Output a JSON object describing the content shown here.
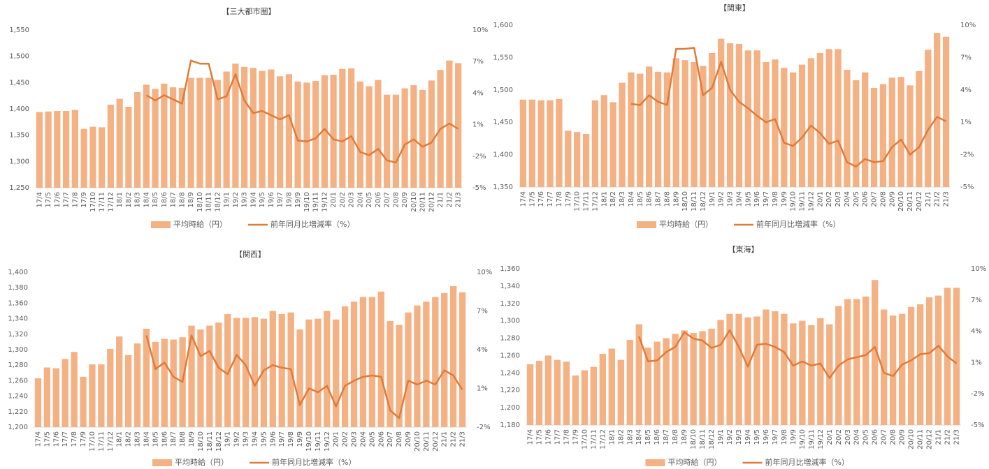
{
  "chart_data": [
    {
      "type": "bar",
      "title": "【三大都市圏】",
      "categories": [
        "17/4",
        "17/5",
        "17/6",
        "17/7",
        "17/8",
        "17/9",
        "17/10",
        "17/11",
        "17/12",
        "18/1",
        "18/2",
        "18/3",
        "18/4",
        "18/5",
        "18/6",
        "18/7",
        "18/8",
        "18/9",
        "18/10",
        "18/11",
        "18/12",
        "19/1",
        "19/2",
        "19/3",
        "19/4",
        "19/5",
        "19/6",
        "19/7",
        "19/8",
        "19/9",
        "19/10",
        "19/11",
        "19/12",
        "20/1",
        "20/2",
        "20/3",
        "20/4",
        "20/5",
        "20/6",
        "20/7",
        "20/8",
        "20/9",
        "20/10",
        "20/11",
        "20/12",
        "21/1",
        "21/2",
        "21/3"
      ],
      "series": [
        {
          "name": "平均時給（円）",
          "color": "#f4b183",
          "values": [
            1394,
            1395,
            1396,
            1396,
            1398,
            1362,
            1366,
            1365,
            1408,
            1419,
            1404,
            1432,
            1446,
            1438,
            1448,
            1441,
            1440,
            1459,
            1459,
            1459,
            1455,
            1471,
            1486,
            1480,
            1478,
            1472,
            1475,
            1462,
            1466,
            1452,
            1450,
            1453,
            1464,
            1465,
            1476,
            1477,
            1452,
            1443,
            1455,
            1427,
            1427,
            1439,
            1445,
            1436,
            1454,
            1474,
            1492,
            1487
          ]
        },
        {
          "name": "前年同月比増減率（%）",
          "color": "#e07b39",
          "axis": "y2",
          "values": [
            null,
            null,
            null,
            null,
            null,
            null,
            null,
            null,
            null,
            null,
            null,
            null,
            3.8,
            3.3,
            3.8,
            3.4,
            3.0,
            7.1,
            6.8,
            6.8,
            3.4,
            3.7,
            5.8,
            3.3,
            2.1,
            2.3,
            1.9,
            1.5,
            1.9,
            -0.5,
            -0.6,
            -0.3,
            0.6,
            -0.4,
            -0.6,
            -0.1,
            -1.6,
            -1.9,
            -1.3,
            -2.4,
            -2.6,
            -0.9,
            -0.4,
            -1.1,
            -0.7,
            0.6,
            1.1,
            0.6
          ]
        }
      ],
      "ylim": [
        1250,
        1550
      ],
      "yticks": [
        {
          "value": 1250,
          "label": "1,250"
        },
        {
          "value": 1300,
          "label": "1,300"
        },
        {
          "value": 1350,
          "label": "1,350"
        },
        {
          "value": 1400,
          "label": "1,400"
        },
        {
          "value": 1450,
          "label": "1,450"
        },
        {
          "value": 1500,
          "label": "1,500"
        },
        {
          "value": 1550,
          "label": "1,550"
        }
      ],
      "y2lim": [
        -5,
        10
      ],
      "y2ticks": [
        {
          "value": -5,
          "label": "-5%"
        },
        {
          "value": -2,
          "label": "-2%"
        },
        {
          "value": 1,
          "label": "1%"
        },
        {
          "value": 4,
          "label": "4%"
        },
        {
          "value": 7,
          "label": "7%"
        },
        {
          "value": 10,
          "label": "10%"
        }
      ]
    },
    {
      "type": "bar",
      "title": "【関東】",
      "categories": [
        "17/4",
        "17/5",
        "17/6",
        "17/7",
        "17/8",
        "17/9",
        "17/10",
        "17/11",
        "17/12",
        "18/1",
        "18/2",
        "18/3",
        "18/4",
        "18/5",
        "18/6",
        "18/7",
        "18/8",
        "18/9",
        "18/10",
        "18/11",
        "18/12",
        "19/1",
        "19/2",
        "19/3",
        "19/4",
        "19/5",
        "19/6",
        "19/7",
        "19/8",
        "19/9",
        "19/10",
        "19/11",
        "19/12",
        "20/1",
        "20/2",
        "20/3",
        "20/4",
        "20/5",
        "20/6",
        "20/7",
        "20/8",
        "20/9",
        "20/10",
        "20/11",
        "20/12",
        "21/1",
        "21/2",
        "21/3"
      ],
      "series": [
        {
          "name": "平均時給（円）",
          "color": "#f4b183",
          "values": [
            1485,
            1485,
            1484,
            1484,
            1486,
            1437,
            1435,
            1432,
            1484,
            1492,
            1481,
            1511,
            1527,
            1525,
            1536,
            1528,
            1527,
            1549,
            1546,
            1543,
            1537,
            1557,
            1579,
            1572,
            1571,
            1561,
            1561,
            1543,
            1547,
            1534,
            1527,
            1539,
            1549,
            1557,
            1563,
            1563,
            1531,
            1515,
            1527,
            1503,
            1509,
            1519,
            1520,
            1507,
            1529,
            1562,
            1588,
            1582
          ]
        },
        {
          "name": "前年同月比増減率（%）",
          "color": "#e07b39",
          "axis": "y2",
          "values": [
            null,
            null,
            null,
            null,
            null,
            null,
            null,
            null,
            null,
            null,
            null,
            null,
            2.7,
            2.6,
            3.5,
            2.9,
            2.6,
            7.8,
            7.8,
            7.9,
            3.5,
            4.2,
            6.6,
            4.0,
            2.9,
            2.3,
            1.6,
            1.0,
            1.3,
            -0.9,
            -1.2,
            -0.4,
            0.7,
            0.0,
            -1.0,
            -0.7,
            -2.7,
            -3.1,
            -2.4,
            -2.7,
            -2.6,
            -1.3,
            -0.6,
            -2.0,
            -1.3,
            0.3,
            1.5,
            1.1
          ]
        }
      ],
      "ylim": [
        1350,
        1600
      ],
      "yticks": [
        {
          "value": 1350,
          "label": "1,350"
        },
        {
          "value": 1400,
          "label": "1,400"
        },
        {
          "value": 1450,
          "label": "1,450"
        },
        {
          "value": 1500,
          "label": "1,500"
        },
        {
          "value": 1550,
          "label": "1,550"
        },
        {
          "value": 1600,
          "label": "1,600"
        }
      ],
      "y2lim": [
        -5,
        10
      ],
      "y2ticks": [
        {
          "value": -5,
          "label": "-5%"
        },
        {
          "value": -2,
          "label": "-2%"
        },
        {
          "value": 1,
          "label": "1%"
        },
        {
          "value": 4,
          "label": "4%"
        },
        {
          "value": 7,
          "label": "7%"
        },
        {
          "value": 10,
          "label": "10%"
        }
      ]
    },
    {
      "type": "bar",
      "title": "【関西】",
      "categories": [
        "17/4",
        "17/5",
        "17/6",
        "17/7",
        "17/8",
        "17/9",
        "17/10",
        "17/11",
        "17/12",
        "18/1",
        "18/2",
        "18/3",
        "18/4",
        "18/5",
        "18/6",
        "18/7",
        "18/8",
        "18/9",
        "18/10",
        "18/11",
        "18/12",
        "19/1",
        "19/2",
        "19/3",
        "19/4",
        "19/5",
        "19/6",
        "19/7",
        "19/8",
        "19/9",
        "19/10",
        "19/11",
        "19/12",
        "20/1",
        "20/2",
        "20/3",
        "20/4",
        "20/5",
        "20/6",
        "20/7",
        "20/8",
        "20/9",
        "20/10",
        "20/11",
        "20/12",
        "21/1",
        "21/2",
        "21/3"
      ],
      "series": [
        {
          "name": "平均時給（円）",
          "color": "#f4b183",
          "values": [
            1263,
            1277,
            1276,
            1288,
            1297,
            1265,
            1281,
            1281,
            1301,
            1317,
            1293,
            1308,
            1327,
            1310,
            1314,
            1313,
            1316,
            1331,
            1326,
            1331,
            1335,
            1346,
            1341,
            1341,
            1342,
            1340,
            1350,
            1346,
            1348,
            1326,
            1339,
            1340,
            1350,
            1339,
            1356,
            1362,
            1368,
            1368,
            1375,
            1337,
            1332,
            1348,
            1357,
            1362,
            1368,
            1373,
            1382,
            1374
          ]
        },
        {
          "name": "前年同月比増減率（%）",
          "color": "#e07b39",
          "axis": "y2",
          "values": [
            null,
            null,
            null,
            null,
            null,
            null,
            null,
            null,
            null,
            null,
            null,
            null,
            5.1,
            2.5,
            3.0,
            1.9,
            1.5,
            5.1,
            3.5,
            3.9,
            2.6,
            2.1,
            3.6,
            2.8,
            1.2,
            2.4,
            2.8,
            2.6,
            2.5,
            -0.3,
            1.0,
            0.7,
            1.2,
            -0.4,
            1.2,
            1.6,
            1.9,
            2.0,
            1.9,
            -0.7,
            -1.3,
            1.6,
            1.3,
            1.6,
            1.3,
            2.4,
            2.0,
            0.9
          ]
        }
      ],
      "ylim": [
        1200,
        1400
      ],
      "yticks": [
        {
          "value": 1200,
          "label": "1,200"
        },
        {
          "value": 1220,
          "label": "1,220"
        },
        {
          "value": 1240,
          "label": "1,240"
        },
        {
          "value": 1260,
          "label": "1,260"
        },
        {
          "value": 1280,
          "label": "1,280"
        },
        {
          "value": 1300,
          "label": "1,300"
        },
        {
          "value": 1320,
          "label": "1,320"
        },
        {
          "value": 1340,
          "label": "1,340"
        },
        {
          "value": 1360,
          "label": "1,360"
        },
        {
          "value": 1380,
          "label": "1,380"
        },
        {
          "value": 1400,
          "label": "1,400"
        }
      ],
      "y2lim": [
        -2,
        10
      ],
      "y2ticks": [
        {
          "value": -2,
          "label": "-2%"
        },
        {
          "value": 1,
          "label": "1%"
        },
        {
          "value": 4,
          "label": "4%"
        },
        {
          "value": 7,
          "label": "7%"
        },
        {
          "value": 10,
          "label": "10%"
        }
      ]
    },
    {
      "type": "bar",
      "title": "【東海】",
      "categories": [
        "17/4",
        "17/5",
        "17/6",
        "17/7",
        "17/8",
        "17/9",
        "17/10",
        "17/11",
        "17/12",
        "18/1",
        "18/2",
        "18/3",
        "18/4",
        "18/5",
        "18/6",
        "18/7",
        "18/8",
        "18/9",
        "18/10",
        "18/11",
        "18/12",
        "19/1",
        "19/2",
        "19/3",
        "19/4",
        "19/5",
        "19/6",
        "19/7",
        "19/8",
        "19/9",
        "19/10",
        "19/11",
        "19/12",
        "20/1",
        "20/2",
        "20/3",
        "20/4",
        "20/5",
        "20/6",
        "20/7",
        "20/8",
        "20/9",
        "20/10",
        "20/11",
        "20/12",
        "21/1",
        "21/2",
        "21/3"
      ],
      "series": [
        {
          "name": "平均時給（円）",
          "color": "#f4b183",
          "values": [
            1250,
            1254,
            1260,
            1255,
            1253,
            1237,
            1243,
            1247,
            1262,
            1268,
            1255,
            1278,
            1296,
            1269,
            1276,
            1280,
            1285,
            1289,
            1286,
            1288,
            1291,
            1301,
            1308,
            1308,
            1304,
            1305,
            1313,
            1311,
            1308,
            1297,
            1300,
            1295,
            1303,
            1296,
            1317,
            1325,
            1325,
            1328,
            1347,
            1313,
            1306,
            1308,
            1316,
            1319,
            1327,
            1329,
            1338,
            1338
          ]
        },
        {
          "name": "前年同月比増減率（%）",
          "color": "#e07b39",
          "axis": "y2",
          "values": [
            null,
            null,
            null,
            null,
            null,
            null,
            null,
            null,
            null,
            null,
            null,
            null,
            3.5,
            1.1,
            1.2,
            2.0,
            2.5,
            3.9,
            3.3,
            3.1,
            2.4,
            2.7,
            4.1,
            2.5,
            0.6,
            2.7,
            2.8,
            2.5,
            2.0,
            0.7,
            1.1,
            0.7,
            0.9,
            -0.5,
            0.7,
            1.3,
            1.5,
            1.7,
            2.5,
            0.0,
            -0.3,
            0.8,
            1.2,
            1.8,
            1.9,
            2.6,
            1.6,
            0.9
          ]
        }
      ],
      "ylim": [
        1180,
        1360
      ],
      "yticks": [
        {
          "value": 1180,
          "label": "1,180"
        },
        {
          "value": 1200,
          "label": "1,200"
        },
        {
          "value": 1220,
          "label": "1,220"
        },
        {
          "value": 1240,
          "label": "1,240"
        },
        {
          "value": 1260,
          "label": "1,260"
        },
        {
          "value": 1280,
          "label": "1,280"
        },
        {
          "value": 1300,
          "label": "1,300"
        },
        {
          "value": 1320,
          "label": "1,320"
        },
        {
          "value": 1340,
          "label": "1,340"
        },
        {
          "value": 1360,
          "label": "1,360"
        }
      ],
      "y2lim": [
        -5,
        10
      ],
      "y2ticks": [
        {
          "value": -5,
          "label": "-5%"
        },
        {
          "value": -2,
          "label": "-2%"
        },
        {
          "value": 1,
          "label": "1%"
        },
        {
          "value": 4,
          "label": "4%"
        },
        {
          "value": 7,
          "label": "7%"
        },
        {
          "value": 10,
          "label": "10%"
        }
      ]
    }
  ]
}
